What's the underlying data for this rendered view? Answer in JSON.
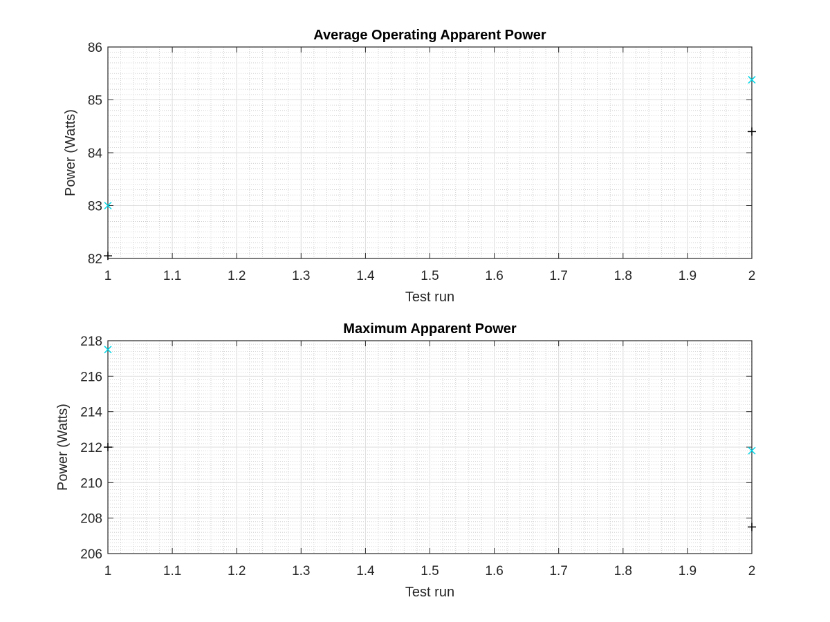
{
  "chart_data": [
    {
      "type": "scatter",
      "title": "Average Operating Apparent Power",
      "xlabel": "Test run",
      "ylabel": "Power (Watts)",
      "xlim": [
        1,
        2
      ],
      "ylim": [
        82,
        86
      ],
      "xticks": [
        1,
        1.1,
        1.2,
        1.3,
        1.4,
        1.5,
        1.6,
        1.7,
        1.8,
        1.9,
        2
      ],
      "xtick_labels": [
        "1",
        "1.1",
        "1.2",
        "1.3",
        "1.4",
        "1.5",
        "1.6",
        "1.7",
        "1.8",
        "1.9",
        "2"
      ],
      "yticks": [
        82,
        83,
        84,
        85,
        86
      ],
      "ytick_labels": [
        "82",
        "83",
        "84",
        "85",
        "86"
      ],
      "grid": true,
      "minor_grid": true,
      "series": [
        {
          "marker": "x",
          "color": "#00d8e8",
          "x": [
            1,
            2
          ],
          "y": [
            83.0,
            85.38
          ]
        },
        {
          "marker": "+",
          "color": "#000000",
          "x": [
            1,
            2
          ],
          "y": [
            82.05,
            84.4
          ]
        }
      ]
    },
    {
      "type": "scatter",
      "title": "Maximum Apparent Power",
      "xlabel": "Test run",
      "ylabel": "Power (Watts)",
      "xlim": [
        1,
        2
      ],
      "ylim": [
        206,
        218
      ],
      "xticks": [
        1,
        1.1,
        1.2,
        1.3,
        1.4,
        1.5,
        1.6,
        1.7,
        1.8,
        1.9,
        2
      ],
      "xtick_labels": [
        "1",
        "1.1",
        "1.2",
        "1.3",
        "1.4",
        "1.5",
        "1.6",
        "1.7",
        "1.8",
        "1.9",
        "2"
      ],
      "yticks": [
        206,
        208,
        210,
        212,
        214,
        216,
        218
      ],
      "ytick_labels": [
        "206",
        "208",
        "210",
        "212",
        "214",
        "216",
        "218"
      ],
      "grid": true,
      "minor_grid": true,
      "series": [
        {
          "marker": "x",
          "color": "#00d8e8",
          "x": [
            1,
            2
          ],
          "y": [
            217.5,
            211.8
          ]
        },
        {
          "marker": "+",
          "color": "#000000",
          "x": [
            1,
            2
          ],
          "y": [
            212.0,
            207.5
          ]
        }
      ]
    }
  ]
}
